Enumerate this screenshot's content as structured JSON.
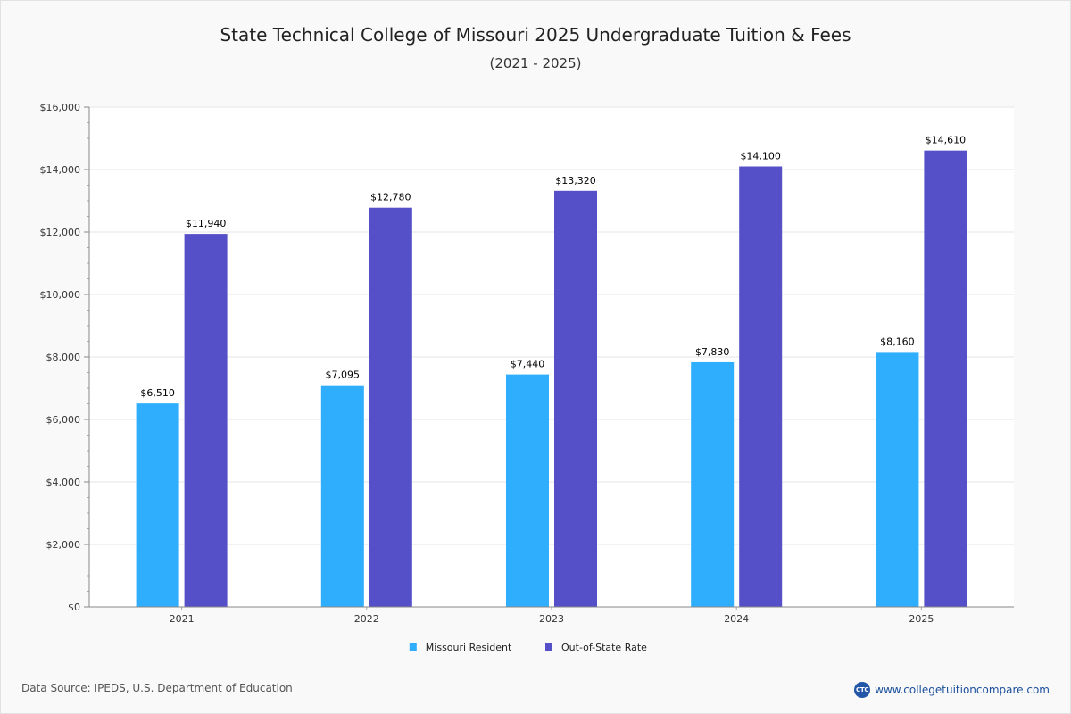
{
  "chart_data": {
    "type": "bar",
    "title": "State Technical College of Missouri 2025 Undergraduate Tuition & Fees",
    "subtitle": "(2021 - 2025)",
    "categories": [
      "2021",
      "2022",
      "2023",
      "2024",
      "2025"
    ],
    "series": [
      {
        "name": "Missouri Resident",
        "color": "#2eaefc",
        "values": [
          6510,
          7095,
          7440,
          7830,
          8160
        ],
        "labels": [
          "$6,510",
          "$7,095",
          "$7,440",
          "$7,830",
          "$8,160"
        ]
      },
      {
        "name": "Out-of-State Rate",
        "color": "#5550c8",
        "values": [
          11940,
          12780,
          13320,
          14100,
          14610
        ],
        "labels": [
          "$11,940",
          "$12,780",
          "$13,320",
          "$14,100",
          "$14,610"
        ]
      }
    ],
    "ylim": [
      0,
      16000
    ],
    "yticks": [
      0,
      2000,
      4000,
      6000,
      8000,
      10000,
      12000,
      14000,
      16000
    ],
    "ytick_labels": [
      "$0",
      "$2,000",
      "$4,000",
      "$6,000",
      "$8,000",
      "$10,000",
      "$12,000",
      "$14,000",
      "$16,000"
    ],
    "grid": true,
    "legend_position": "bottom-center"
  },
  "footer": {
    "source": "Data Source: IPEDS, U.S. Department of Education",
    "logo_text": "CTC",
    "site": "www.collegetuitioncompare.com"
  }
}
